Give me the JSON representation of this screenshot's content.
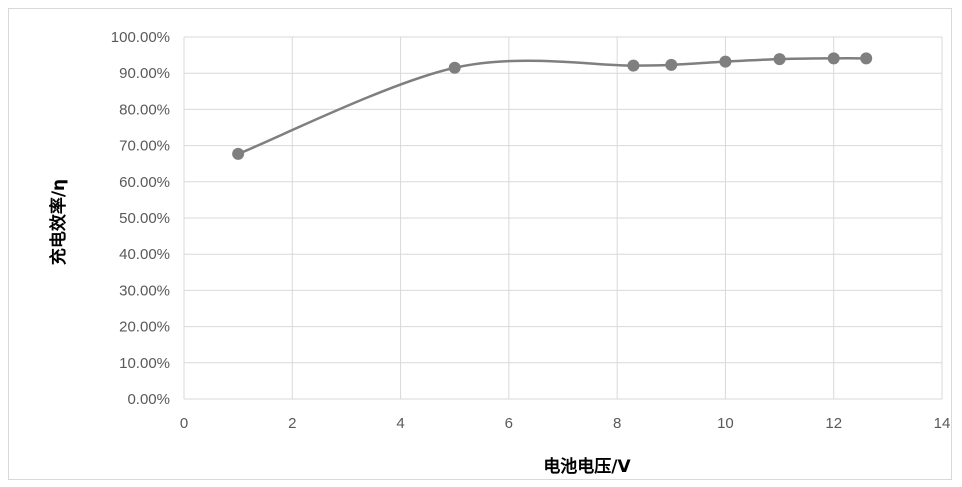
{
  "chart_data": {
    "type": "scatter",
    "style": "smooth-line-with-markers",
    "title": "",
    "xlabel": "电池电压/V",
    "ylabel": "充电效率/η",
    "xlim": [
      0,
      14
    ],
    "ylim": [
      0,
      1
    ],
    "x_ticks": [
      "0",
      "2",
      "4",
      "6",
      "8",
      "10",
      "12",
      "14"
    ],
    "y_ticks": [
      "0.00%",
      "10.00%",
      "20.00%",
      "30.00%",
      "40.00%",
      "50.00%",
      "60.00%",
      "70.00%",
      "80.00%",
      "90.00%",
      "100.00%"
    ],
    "grid": true,
    "legend": "none",
    "series": [
      {
        "x": [
          1,
          5,
          8.3,
          9,
          10,
          11,
          12,
          12.6
        ],
        "y": [
          0.677,
          0.915,
          0.921,
          0.923,
          0.932,
          0.939,
          0.941,
          0.941
        ]
      }
    ],
    "colors": {
      "series": "#7f7f7f",
      "grid": "#d9d9d9",
      "tick_text": "#595959"
    }
  }
}
